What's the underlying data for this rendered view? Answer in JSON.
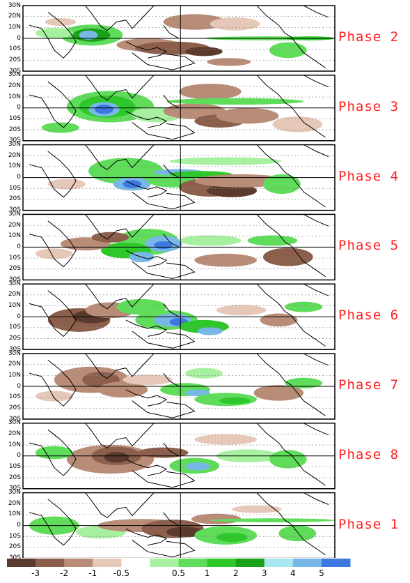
{
  "panels": [
    {
      "label": "Phase 2",
      "pattern": "p2"
    },
    {
      "label": "Phase 3",
      "pattern": "p3"
    },
    {
      "label": "Phase 4",
      "pattern": "p4"
    },
    {
      "label": "Phase 5",
      "pattern": "p5"
    },
    {
      "label": "Phase 6",
      "pattern": "p6"
    },
    {
      "label": "Phase 7",
      "pattern": "p7"
    },
    {
      "label": "Phase 8",
      "pattern": "p8"
    },
    {
      "label": "Phase 1",
      "pattern": "p1"
    }
  ],
  "latitude_labels": [
    "30N",
    "20N",
    "10N",
    "0",
    "10S",
    "20S",
    "30S"
  ],
  "colorbar": {
    "labels": [
      "-3",
      "-2",
      "-1",
      "-0.5",
      "0.5",
      "1",
      "2",
      "3",
      "4",
      "5"
    ],
    "colors": {
      "brown_dark": "#5a3a2c",
      "brown_mid": "#8c5f4c",
      "brown_light": "#b98c78",
      "brown_pale": "#e6c8b8",
      "green_pale": "#a6f0a0",
      "green_light": "#5fdc5a",
      "green_mid": "#2ec82a",
      "green_dark": "#18a018",
      "blue_pale": "#a8e6f0",
      "blue_mid": "#78b8e8",
      "blue_dark": "#3c78e0"
    }
  }
}
